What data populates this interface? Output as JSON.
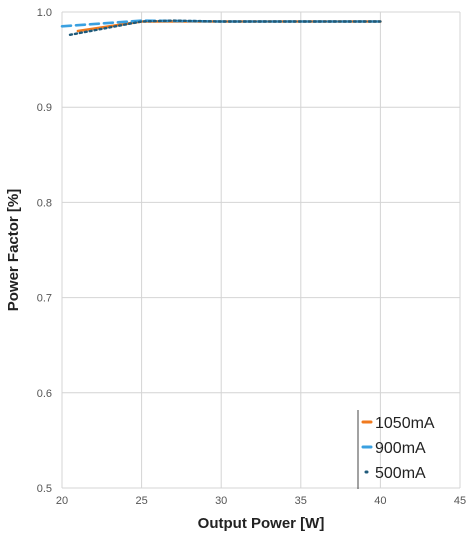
{
  "chart_data": {
    "type": "line",
    "title": "",
    "xlabel": "Output Power [W]",
    "ylabel": "Power Factor [%]",
    "xlim": [
      20,
      45
    ],
    "ylim": [
      0.5,
      1.0
    ],
    "x_ticks": [
      "20",
      "25",
      "30",
      "35",
      "40",
      "45"
    ],
    "y_ticks": [
      "0.5",
      "0.6",
      "0.7",
      "0.8",
      "0.9",
      "1.0"
    ],
    "grid": true,
    "legend_position": "bottom-right",
    "series": [
      {
        "name": "1050mA",
        "color": "#f07a1e",
        "style": "solid",
        "points": [
          [
            21,
            0.98
          ],
          [
            25,
            0.99
          ],
          [
            30,
            0.99
          ],
          [
            35,
            0.99
          ],
          [
            40,
            0.99
          ]
        ]
      },
      {
        "name": "900mA",
        "color": "#3aa0e0",
        "style": "dashed",
        "points": [
          [
            20,
            0.985
          ],
          [
            25,
            0.991
          ],
          [
            30,
            0.99
          ],
          [
            35,
            0.99
          ],
          [
            40,
            0.99
          ]
        ]
      },
      {
        "name": "500mA",
        "color": "#1f5a7a",
        "style": "dotted",
        "points": [
          [
            20.5,
            0.976
          ],
          [
            25,
            0.99
          ],
          [
            27,
            0.991
          ],
          [
            30,
            0.99
          ],
          [
            35,
            0.99
          ],
          [
            40,
            0.99
          ]
        ]
      }
    ]
  }
}
